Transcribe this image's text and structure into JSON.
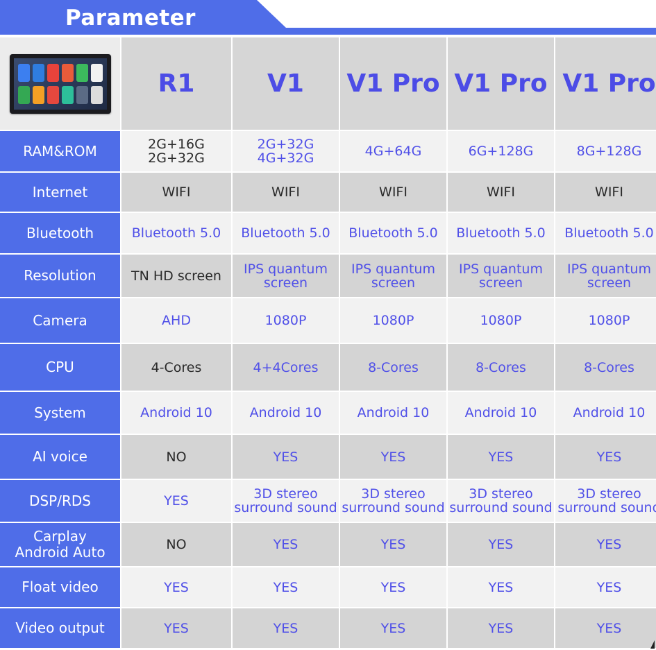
{
  "header": {
    "title": "Parameter"
  },
  "colors": {
    "accent": "#4f6de8",
    "value_text": "#5050e8",
    "dark_text": "#2a2a2a"
  },
  "device_thumbnail": {
    "icon": "car-stereo-head-unit"
  },
  "models": [
    "R1",
    "V1",
    "V1 Pro",
    "V1 Pro",
    "V1 Pro"
  ],
  "rows": [
    {
      "label": "RAM&ROM",
      "values": [
        [
          "2G+16G",
          "2G+32G"
        ],
        [
          "2G+32G",
          "4G+32G"
        ],
        [
          "4G+64G"
        ],
        [
          "6G+128G"
        ],
        [
          "8G+128G"
        ]
      ],
      "dark": [
        true,
        false,
        false,
        false,
        false
      ]
    },
    {
      "label": "Internet",
      "values": [
        [
          "WIFI"
        ],
        [
          "WIFI"
        ],
        [
          "WIFI"
        ],
        [
          "WIFI"
        ],
        [
          "WIFI"
        ]
      ],
      "dark": [
        true,
        true,
        true,
        true,
        true
      ]
    },
    {
      "label": "Bluetooth",
      "values": [
        [
          "Bluetooth 5.0"
        ],
        [
          "Bluetooth 5.0"
        ],
        [
          "Bluetooth 5.0"
        ],
        [
          "Bluetooth 5.0"
        ],
        [
          "Bluetooth 5.0"
        ]
      ],
      "dark": [
        false,
        false,
        false,
        false,
        false
      ]
    },
    {
      "label": "Resolution",
      "values": [
        [
          "TN HD screen"
        ],
        [
          "IPS quantum",
          "screen"
        ],
        [
          "IPS quantum",
          "screen"
        ],
        [
          "IPS quantum",
          "screen"
        ],
        [
          "IPS quantum",
          "screen"
        ]
      ],
      "dark": [
        true,
        false,
        false,
        false,
        false
      ]
    },
    {
      "label": "Camera",
      "values": [
        [
          "AHD"
        ],
        [
          "1080P"
        ],
        [
          "1080P"
        ],
        [
          "1080P"
        ],
        [
          "1080P"
        ]
      ],
      "dark": [
        false,
        false,
        false,
        false,
        false
      ]
    },
    {
      "label": "CPU",
      "values": [
        [
          "4-Cores"
        ],
        [
          "4+4Cores"
        ],
        [
          "8-Cores"
        ],
        [
          "8-Cores"
        ],
        [
          "8-Cores"
        ]
      ],
      "dark": [
        true,
        false,
        false,
        false,
        false
      ]
    },
    {
      "label": "System",
      "values": [
        [
          "Android 10"
        ],
        [
          "Android 10"
        ],
        [
          "Android 10"
        ],
        [
          "Android 10"
        ],
        [
          "Android 10"
        ]
      ],
      "dark": [
        false,
        false,
        false,
        false,
        false
      ]
    },
    {
      "label": "AI voice",
      "values": [
        [
          "NO"
        ],
        [
          "YES"
        ],
        [
          "YES"
        ],
        [
          "YES"
        ],
        [
          "YES"
        ]
      ],
      "dark": [
        true,
        false,
        false,
        false,
        false
      ]
    },
    {
      "label": "DSP/RDS",
      "values": [
        [
          "YES"
        ],
        [
          "3D stereo",
          "surround sound"
        ],
        [
          "3D stereo",
          "surround sound"
        ],
        [
          "3D stereo",
          "surround sound"
        ],
        [
          "3D stereo",
          "surround sound"
        ]
      ],
      "dark": [
        false,
        false,
        false,
        false,
        false
      ]
    },
    {
      "label": "Carplay\nAndroid Auto",
      "label_lines": [
        "Carplay",
        "Android Auto"
      ],
      "values": [
        [
          "NO"
        ],
        [
          "YES"
        ],
        [
          "YES"
        ],
        [
          "YES"
        ],
        [
          "YES"
        ]
      ],
      "dark": [
        true,
        false,
        false,
        false,
        false
      ]
    },
    {
      "label": "Float video",
      "values": [
        [
          "YES"
        ],
        [
          "YES"
        ],
        [
          "YES"
        ],
        [
          "YES"
        ],
        [
          "YES"
        ]
      ],
      "dark": [
        false,
        false,
        false,
        false,
        false
      ]
    },
    {
      "label": "Video output",
      "values": [
        [
          "YES"
        ],
        [
          "YES"
        ],
        [
          "YES"
        ],
        [
          "YES"
        ],
        [
          "YES"
        ]
      ],
      "dark": [
        false,
        false,
        false,
        false,
        false
      ]
    }
  ]
}
